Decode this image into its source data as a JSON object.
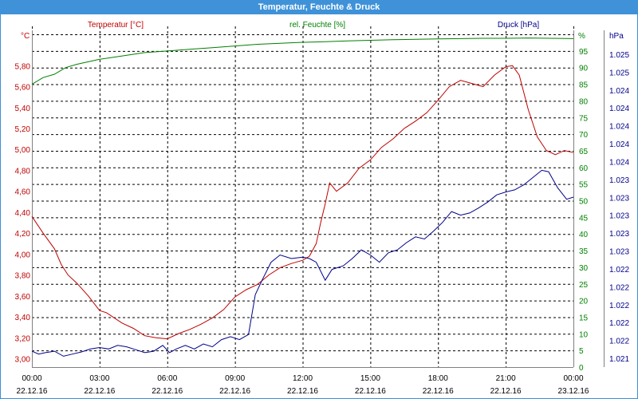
{
  "window": {
    "title": "Temperatur, Feuchte & Druck"
  },
  "chart_data": {
    "type": "line",
    "grid": true,
    "colors": {
      "temperature": "#c00000",
      "humidity": "#008000",
      "pressure": "#00008b",
      "grid": "#000000",
      "titlebar": "#3f92d8"
    },
    "x": {
      "range_hours": [
        0,
        24
      ],
      "ticks": [
        {
          "h": 0,
          "time": "00:00",
          "date": "22.12.16"
        },
        {
          "h": 3,
          "time": "03:00",
          "date": "22.12.16"
        },
        {
          "h": 6,
          "time": "06:00",
          "date": "22.12.16"
        },
        {
          "h": 9,
          "time": "09:00",
          "date": "22.12.16"
        },
        {
          "h": 12,
          "time": "12:00",
          "date": "22.12.16"
        },
        {
          "h": 15,
          "time": "15:00",
          "date": "22.12.16"
        },
        {
          "h": 18,
          "time": "18:00",
          "date": "22.12.16"
        },
        {
          "h": 21,
          "time": "21:00",
          "date": "22.12.16"
        },
        {
          "h": 24,
          "time": "00:00",
          "date": "23.12.16"
        }
      ]
    },
    "axes": {
      "temperature": {
        "unit": "°C",
        "header": "Temperatur [°C]",
        "range": [
          2.92,
          6.1
        ],
        "ticks": [
          "3,00",
          "3,20",
          "3,40",
          "3,60",
          "3,80",
          "4,00",
          "4,20",
          "4,40",
          "4,60",
          "4,80",
          "5,00",
          "5,20",
          "5,40",
          "5,60",
          "5,80"
        ]
      },
      "humidity": {
        "unit": "%",
        "header": "rel. Feuchte [%]",
        "range": [
          0,
          100
        ],
        "ticks": [
          "0",
          "5",
          "10",
          "15",
          "20",
          "25",
          "30",
          "35",
          "40",
          "45",
          "50",
          "55",
          "60",
          "65",
          "70",
          "75",
          "80",
          "85",
          "90",
          "95"
        ]
      },
      "pressure": {
        "unit": "hPa",
        "header": "Druck [hPa]",
        "range": [
          1021.0,
          1025.6
        ],
        "ticks": [
          "1.021",
          "1.022",
          "1.022",
          "1.022",
          "1.022",
          "1.022",
          "1.023",
          "1.023",
          "1.023",
          "1.023",
          "1.023",
          "1.024",
          "1.024",
          "1.024",
          "1.024",
          "1.024",
          "1.025",
          "1.025"
        ]
      }
    },
    "series": [
      {
        "name": "Temperatur [°C]",
        "axis": "temperature",
        "color_key": "temperature",
        "points": [
          [
            0,
            4.36
          ],
          [
            0.5,
            4.2
          ],
          [
            1,
            4.05
          ],
          [
            1.3,
            3.9
          ],
          [
            1.6,
            3.8
          ],
          [
            2,
            3.72
          ],
          [
            2.5,
            3.6
          ],
          [
            3,
            3.46
          ],
          [
            3.3,
            3.44
          ],
          [
            4,
            3.34
          ],
          [
            4.5,
            3.29
          ],
          [
            5,
            3.22
          ],
          [
            5.5,
            3.2
          ],
          [
            6,
            3.19
          ],
          [
            6.5,
            3.24
          ],
          [
            7,
            3.28
          ],
          [
            7.5,
            3.33
          ],
          [
            8,
            3.39
          ],
          [
            8.5,
            3.47
          ],
          [
            9,
            3.59
          ],
          [
            9.5,
            3.66
          ],
          [
            10,
            3.71
          ],
          [
            10.5,
            3.8
          ],
          [
            11,
            3.87
          ],
          [
            11.5,
            3.91
          ],
          [
            12,
            3.94
          ],
          [
            12.3,
            3.98
          ],
          [
            12.6,
            4.1
          ],
          [
            12.8,
            4.3
          ],
          [
            13,
            4.48
          ],
          [
            13.2,
            4.68
          ],
          [
            13.5,
            4.6
          ],
          [
            14,
            4.68
          ],
          [
            14.5,
            4.82
          ],
          [
            15,
            4.9
          ],
          [
            15.5,
            5.02
          ],
          [
            16,
            5.1
          ],
          [
            16.5,
            5.2
          ],
          [
            17,
            5.27
          ],
          [
            17.5,
            5.35
          ],
          [
            18,
            5.47
          ],
          [
            18.5,
            5.6
          ],
          [
            19,
            5.66
          ],
          [
            19.5,
            5.63
          ],
          [
            20,
            5.6
          ],
          [
            20.5,
            5.71
          ],
          [
            21,
            5.79
          ],
          [
            21.3,
            5.8
          ],
          [
            21.6,
            5.71
          ],
          [
            22,
            5.38
          ],
          [
            22.4,
            5.12
          ],
          [
            22.8,
            4.99
          ],
          [
            23.2,
            4.95
          ],
          [
            23.6,
            4.99
          ],
          [
            24,
            4.97
          ]
        ]
      },
      {
        "name": "rel. Feuchte [%]",
        "axis": "humidity",
        "color_key": "humidity",
        "points": [
          [
            0,
            85
          ],
          [
            0.5,
            87
          ],
          [
            1,
            88
          ],
          [
            1.5,
            90
          ],
          [
            2,
            91
          ],
          [
            3,
            92.5
          ],
          [
            4,
            93.5
          ],
          [
            5,
            94.5
          ],
          [
            6,
            95
          ],
          [
            7,
            95.5
          ],
          [
            8,
            96
          ],
          [
            9,
            96.5
          ],
          [
            10,
            97
          ],
          [
            11,
            97.3
          ],
          [
            12,
            97.6
          ],
          [
            13,
            97.8
          ],
          [
            14,
            98
          ],
          [
            15,
            98.2
          ],
          [
            16,
            98.4
          ],
          [
            17,
            98.5
          ],
          [
            18,
            98.6
          ],
          [
            19,
            98.7
          ],
          [
            20,
            98.8
          ],
          [
            21,
            98.8
          ],
          [
            22,
            98.9
          ],
          [
            23,
            98.8
          ],
          [
            24,
            98.7
          ]
        ]
      },
      {
        "name": "Druck [hPa]",
        "axis": "pressure",
        "color_key": "pressure",
        "points": [
          [
            0,
            1021.22
          ],
          [
            0.3,
            1021.18
          ],
          [
            0.6,
            1021.2
          ],
          [
            1,
            1021.22
          ],
          [
            1.4,
            1021.15
          ],
          [
            1.8,
            1021.18
          ],
          [
            2.2,
            1021.21
          ],
          [
            2.6,
            1021.25
          ],
          [
            3,
            1021.27
          ],
          [
            3.4,
            1021.25
          ],
          [
            3.8,
            1021.3
          ],
          [
            4.2,
            1021.28
          ],
          [
            4.6,
            1021.24
          ],
          [
            5,
            1021.2
          ],
          [
            5.4,
            1021.22
          ],
          [
            5.8,
            1021.3
          ],
          [
            6.1,
            1021.2
          ],
          [
            6.4,
            1021.25
          ],
          [
            6.8,
            1021.3
          ],
          [
            7.2,
            1021.25
          ],
          [
            7.6,
            1021.32
          ],
          [
            8,
            1021.28
          ],
          [
            8.4,
            1021.38
          ],
          [
            8.8,
            1021.42
          ],
          [
            9.2,
            1021.38
          ],
          [
            9.6,
            1021.45
          ],
          [
            9.9,
            1022.0
          ],
          [
            10.2,
            1022.2
          ],
          [
            10.6,
            1022.45
          ],
          [
            11,
            1022.55
          ],
          [
            11.5,
            1022.5
          ],
          [
            12,
            1022.52
          ],
          [
            12.3,
            1022.5
          ],
          [
            12.6,
            1022.45
          ],
          [
            13,
            1022.2
          ],
          [
            13.3,
            1022.35
          ],
          [
            13.8,
            1022.4
          ],
          [
            14.2,
            1022.5
          ],
          [
            14.6,
            1022.62
          ],
          [
            15,
            1022.55
          ],
          [
            15.4,
            1022.45
          ],
          [
            15.8,
            1022.58
          ],
          [
            16.2,
            1022.62
          ],
          [
            16.6,
            1022.72
          ],
          [
            17,
            1022.8
          ],
          [
            17.4,
            1022.77
          ],
          [
            17.8,
            1022.88
          ],
          [
            18.2,
            1023.0
          ],
          [
            18.6,
            1023.15
          ],
          [
            19,
            1023.1
          ],
          [
            19.4,
            1023.13
          ],
          [
            19.8,
            1023.2
          ],
          [
            20.2,
            1023.28
          ],
          [
            20.6,
            1023.38
          ],
          [
            21,
            1023.42
          ],
          [
            21.4,
            1023.45
          ],
          [
            21.8,
            1023.52
          ],
          [
            22.2,
            1023.62
          ],
          [
            22.6,
            1023.72
          ],
          [
            22.9,
            1023.7
          ],
          [
            23.3,
            1023.48
          ],
          [
            23.7,
            1023.32
          ],
          [
            24,
            1023.35
          ]
        ]
      }
    ]
  }
}
